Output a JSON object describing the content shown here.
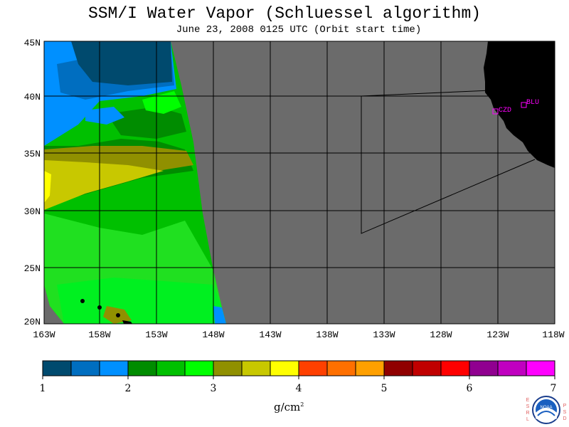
{
  "title": "SSM/I Water Vapor (Schluessel algorithm)",
  "subtitle": "June 23, 2008  0125 UTC  (Orbit start time)",
  "map": {
    "lat_range": [
      20,
      45
    ],
    "lon_range": [
      -163,
      -118
    ],
    "lat_labels": [
      "45N",
      "40N",
      "35N",
      "30N",
      "25N",
      "20N"
    ],
    "lon_labels": [
      "163W",
      "158W",
      "153W",
      "148W",
      "143W",
      "138W",
      "133W",
      "128W",
      "123W",
      "118W"
    ],
    "background_color": "#6b6b6b",
    "land_color": "#000000",
    "stations": [
      {
        "label": "CZD",
        "lon": -123.1,
        "lat": 38.6
      },
      {
        "label": "BLU",
        "lon": -121.0,
        "lat": 39.3
      }
    ],
    "station_color": "#ff00ff"
  },
  "colorbar": {
    "colors": [
      "#004a6e",
      "#006ec0",
      "#0090ff",
      "#008c00",
      "#00c000",
      "#00ff00",
      "#909000",
      "#c8c800",
      "#ffff00",
      "#ff4000",
      "#ff7000",
      "#ffa000",
      "#900000",
      "#c00000",
      "#ff0000",
      "#900090",
      "#c000c0",
      "#ff00ff"
    ],
    "tick_labels": [
      "1",
      "2",
      "3",
      "4",
      "5",
      "6",
      "7"
    ],
    "units": "g/cm",
    "units_exp": "2"
  },
  "logo": {
    "esrl": [
      "E",
      "S",
      "R",
      "L"
    ],
    "psd": [
      "P",
      "S",
      "D"
    ],
    "noaa": "NOAA"
  }
}
